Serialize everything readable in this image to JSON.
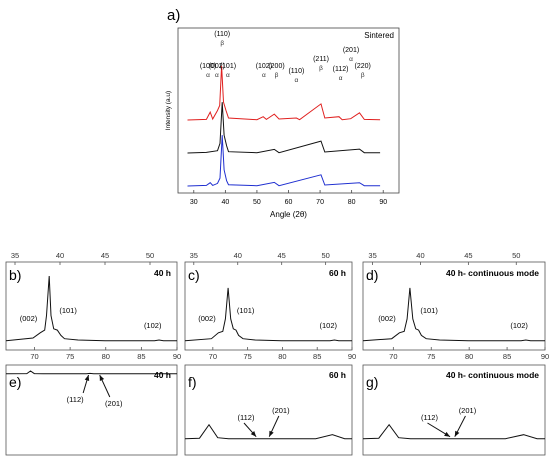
{
  "chart_data": [
    {
      "panel": "a)",
      "type": "line",
      "annotation": "Sintered",
      "xlabel": "Angle (2θ)",
      "ylabel": "Intensity (a.u)",
      "xlim": [
        25,
        95
      ],
      "x_ticks": [
        "30",
        "40",
        "50",
        "60",
        "70",
        "80",
        "90"
      ],
      "series": [
        {
          "color": "#e0201f",
          "offset": 2.0,
          "points": [
            [
              28,
              0.06
            ],
            [
              34,
              0.08
            ],
            [
              35.2,
              0.3
            ],
            [
              36,
              0.09
            ],
            [
              37.5,
              0.35
            ],
            [
              38.2,
              0.5
            ],
            [
              38.8,
              1.7
            ],
            [
              39.4,
              0.6
            ],
            [
              40.2,
              0.35
            ],
            [
              41,
              0.12
            ],
            [
              50,
              0.07
            ],
            [
              52,
              0.16
            ],
            [
              53,
              0.08
            ],
            [
              55.5,
              0.24
            ],
            [
              57,
              0.09
            ],
            [
              62.5,
              0.12
            ],
            [
              63.5,
              0.07
            ],
            [
              70.3,
              0.55
            ],
            [
              71.5,
              0.12
            ],
            [
              76,
              0.16
            ],
            [
              77,
              0.07
            ],
            [
              79.7,
              0.1
            ],
            [
              82.5,
              0.28
            ],
            [
              84,
              0.08
            ],
            [
              89,
              0.07
            ]
          ]
        },
        {
          "color": "#111111",
          "offset": 1.0,
          "points": [
            [
              28,
              0.06
            ],
            [
              34,
              0.08
            ],
            [
              37.5,
              0.13
            ],
            [
              38.3,
              0.35
            ],
            [
              39,
              1.6
            ],
            [
              39.6,
              0.6
            ],
            [
              40.4,
              0.28
            ],
            [
              41,
              0.1
            ],
            [
              50,
              0.07
            ],
            [
              55.5,
              0.17
            ],
            [
              57,
              0.07
            ],
            [
              70.3,
              0.42
            ],
            [
              71.5,
              0.09
            ],
            [
              82.5,
              0.18
            ],
            [
              84,
              0.07
            ],
            [
              89,
              0.07
            ]
          ]
        },
        {
          "color": "#1f2fd0",
          "offset": 0.0,
          "points": [
            [
              28,
              0.06
            ],
            [
              34,
              0.08
            ],
            [
              35.2,
              0.16
            ],
            [
              36,
              0.08
            ],
            [
              37.5,
              0.14
            ],
            [
              38.3,
              0.3
            ],
            [
              39,
              1.6
            ],
            [
              39.6,
              0.55
            ],
            [
              40.4,
              0.22
            ],
            [
              41,
              0.1
            ],
            [
              50,
              0.07
            ],
            [
              55.5,
              0.17
            ],
            [
              57,
              0.07
            ],
            [
              70.3,
              0.4
            ],
            [
              71.5,
              0.09
            ],
            [
              82.5,
              0.16
            ],
            [
              84,
              0.07
            ],
            [
              89,
              0.07
            ]
          ]
        }
      ],
      "peak_labels": [
        {
          "text": "(100)",
          "x": 34.5,
          "sym": "α"
        },
        {
          "text": "(002)",
          "x": 37.3,
          "sym": "α"
        },
        {
          "text": "(110)",
          "x": 39.0,
          "sym": "β"
        },
        {
          "text": "(101)",
          "x": 40.8,
          "sym": "α"
        },
        {
          "text": "(102)",
          "x": 52.2,
          "sym": "α"
        },
        {
          "text": "(200)",
          "x": 56.2,
          "sym": "β"
        },
        {
          "text": "(110)",
          "x": 62.5,
          "sym": "α"
        },
        {
          "text": "(211)",
          "x": 70.3,
          "sym": "β"
        },
        {
          "text": "(112)",
          "x": 76.5,
          "sym": "α"
        },
        {
          "text": "(201)",
          "x": 79.8,
          "sym": "α"
        },
        {
          "text": "(220)",
          "x": 83.5,
          "sym": "β"
        }
      ]
    },
    {
      "panel": "b)",
      "label": "40 h",
      "type": "line",
      "top_ticks": [
        "35",
        "40",
        "45",
        "50"
      ],
      "bottom_ticks": [
        "70",
        "75",
        "80",
        "85",
        "90"
      ],
      "x": [
        34,
        37,
        37.8,
        38.3,
        38.5,
        38.8,
        39.0,
        39.3,
        39.7,
        40.1,
        40.5,
        42,
        45,
        48,
        50.5,
        51,
        51.5,
        53
      ],
      "y": [
        0.02,
        0.06,
        0.14,
        0.18,
        0.4,
        1.0,
        0.4,
        0.2,
        0.18,
        0.1,
        0.05,
        0.03,
        0.02,
        0.02,
        0.02,
        0.03,
        0.02,
        0.02
      ],
      "peak_labels": [
        {
          "text": "(002)",
          "x": 36.5
        },
        {
          "text": "(101)",
          "x": 40.9
        },
        {
          "text": "(102)",
          "x": 50.3
        }
      ]
    },
    {
      "panel": "c)",
      "label": "60 h",
      "type": "line",
      "top_ticks": [
        "35",
        "40",
        "45",
        "50"
      ],
      "bottom_ticks": [
        "70",
        "75",
        "80",
        "85",
        "90"
      ],
      "x": [
        34,
        37,
        37.8,
        38.3,
        38.6,
        38.9,
        39.2,
        39.5,
        39.8,
        40.1,
        40.6,
        42,
        45,
        48,
        50.5,
        51,
        51.5,
        53
      ],
      "y": [
        0.02,
        0.05,
        0.14,
        0.16,
        0.35,
        0.82,
        0.35,
        0.2,
        0.18,
        0.1,
        0.05,
        0.03,
        0.02,
        0.02,
        0.02,
        0.03,
        0.02,
        0.02
      ],
      "peak_labels": [
        {
          "text": "(002)",
          "x": 36.5
        },
        {
          "text": "(101)",
          "x": 40.9
        },
        {
          "text": "(102)",
          "x": 50.3
        }
      ]
    },
    {
      "panel": "d)",
      "label": "40 h- continuous mode",
      "type": "line",
      "top_ticks": [
        "35",
        "40",
        "45",
        "50"
      ],
      "bottom_ticks": [
        "70",
        "75",
        "80",
        "85",
        "90"
      ],
      "x": [
        34,
        37,
        37.8,
        38.3,
        38.6,
        38.9,
        39.2,
        39.5,
        39.8,
        40.1,
        40.6,
        42,
        45,
        48,
        50.5,
        51,
        51.5,
        53
      ],
      "y": [
        0.02,
        0.05,
        0.14,
        0.16,
        0.35,
        0.82,
        0.35,
        0.2,
        0.18,
        0.1,
        0.05,
        0.03,
        0.02,
        0.02,
        0.02,
        0.03,
        0.02,
        0.02
      ],
      "peak_labels": [
        {
          "text": "(002)",
          "x": 36.5
        },
        {
          "text": "(101)",
          "x": 40.9
        },
        {
          "text": "(102)",
          "x": 50.3
        }
      ]
    },
    {
      "panel": "e)",
      "label": "40 h",
      "type": "line",
      "x": [
        67,
        69.8,
        70.3,
        70.8,
        72,
        75,
        77.8,
        78.3,
        78.8,
        80,
        85,
        90
      ],
      "y": [
        0.05,
        0.08,
        0.6,
        0.08,
        0.05,
        0.05,
        0.06,
        0.12,
        0.06,
        0.05,
        0.05,
        0.05
      ],
      "peak_labels": [
        {
          "text": "(112)",
          "x": 76.3,
          "target": 78.1
        },
        {
          "text": "(201)",
          "x": 81.5,
          "target": 79.6
        }
      ]
    },
    {
      "panel": "f)",
      "label": "60 h",
      "type": "line",
      "x": [
        67,
        69,
        70.3,
        71.5,
        73,
        75,
        78,
        80,
        82,
        85,
        87.3,
        89,
        90
      ],
      "y": [
        0.02,
        0.03,
        0.3,
        0.04,
        0.02,
        0.02,
        0.02,
        0.02,
        0.02,
        0.02,
        0.1,
        0.02,
        0.02
      ],
      "peak_labels": [
        {
          "text": "(112)",
          "x": 75.4,
          "target": 76.8
        },
        {
          "text": "(201)",
          "x": 80.2,
          "target": 78.6
        }
      ]
    },
    {
      "panel": "g)",
      "label": "40 h- continuous mode",
      "type": "line",
      "x": [
        67,
        69,
        70.3,
        71.5,
        73,
        75,
        78,
        80,
        82,
        85,
        87.3,
        89,
        90
      ],
      "y": [
        0.02,
        0.03,
        0.3,
        0.04,
        0.02,
        0.02,
        0.02,
        0.02,
        0.02,
        0.02,
        0.1,
        0.02,
        0.02
      ],
      "peak_labels": [
        {
          "text": "(112)",
          "x": 75.4,
          "target": 78.0
        },
        {
          "text": "(201)",
          "x": 80.2,
          "target": 78.6
        }
      ]
    }
  ]
}
